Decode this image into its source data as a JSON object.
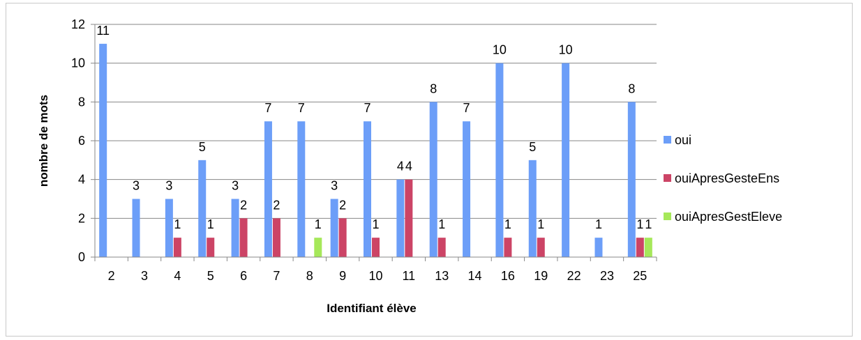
{
  "chart_data": {
    "type": "bar",
    "title": "",
    "xlabel": "Identifiant élève",
    "ylabel": "nombre de mots",
    "ylim": [
      0,
      12
    ],
    "yticks": [
      0,
      2,
      4,
      6,
      8,
      10,
      12
    ],
    "grid": "horizontal",
    "legend_position": "right",
    "categories": [
      "2",
      "3",
      "4",
      "5",
      "6",
      "7",
      "8",
      "9",
      "10",
      "11",
      "13",
      "14",
      "16",
      "19",
      "22",
      "23",
      "25"
    ],
    "series": [
      {
        "name": "oui",
        "color": "#6c9ef8",
        "values": [
          11,
          3,
          3,
          5,
          3,
          7,
          7,
          3,
          7,
          4,
          8,
          7,
          10,
          5,
          10,
          1,
          8
        ]
      },
      {
        "name": "ouiApresGesteEns",
        "color": "#cc4466",
        "values": [
          null,
          null,
          1,
          1,
          2,
          2,
          null,
          2,
          1,
          4,
          1,
          null,
          1,
          1,
          null,
          null,
          1
        ]
      },
      {
        "name": "ouiApresGestEleve",
        "color": "#a6e85a",
        "values": [
          null,
          null,
          null,
          null,
          null,
          null,
          1,
          null,
          null,
          null,
          null,
          null,
          null,
          null,
          null,
          null,
          1
        ]
      }
    ]
  }
}
